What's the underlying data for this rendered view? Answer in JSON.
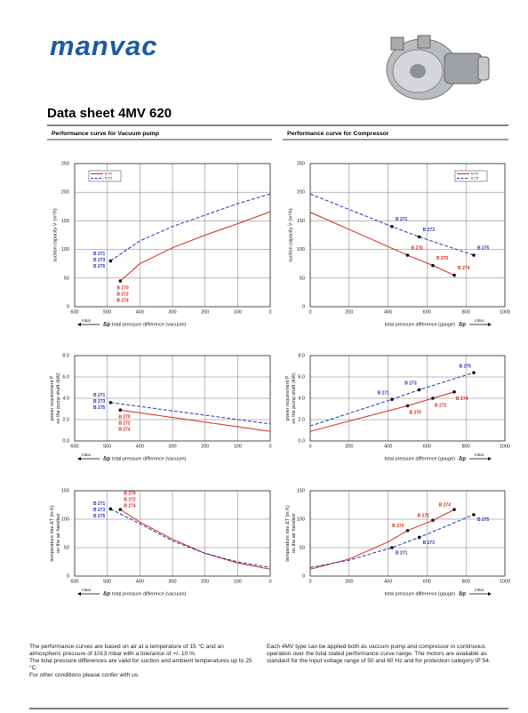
{
  "header": {
    "logo": "manvac",
    "title": "Data sheet 4MV 620"
  },
  "sections": [
    "Performance curve for Vacuum pump",
    "Performance curve for Compressor"
  ],
  "chart_data": [
    {
      "type": "line",
      "ylabel": [
        "suction capacity V̇ (m³/h)"
      ],
      "xunit": "mbar",
      "xsymbol": "Δp",
      "xlabel": "total pressure difference (vacuum)",
      "xlim": [
        600,
        0
      ],
      "xticks": [
        600,
        500,
        400,
        300,
        200,
        100,
        0
      ],
      "ylim": [
        0,
        250
      ],
      "yticks": [
        0,
        50,
        100,
        150,
        200,
        250
      ],
      "grid": true,
      "legend": "upper left",
      "series": [
        {
          "name": "B 270",
          "color": "#d42a1e",
          "dash": false,
          "x": [
            460,
            400,
            300,
            200,
            100,
            0
          ],
          "values": [
            45,
            75,
            103,
            125,
            145,
            166
          ],
          "markers": [
            {
              "x": 460,
              "y": 45,
              "labels": [
                "B 270",
                "B 272",
                "B 274"
              ]
            }
          ]
        },
        {
          "name": "B 275",
          "color": "#2238b8",
          "dash": true,
          "x": [
            490,
            400,
            300,
            200,
            100,
            0
          ],
          "values": [
            80,
            115,
            140,
            160,
            180,
            197
          ],
          "markers": [
            {
              "x": 490,
              "y": 80,
              "labels": [
                "B 271",
                "B 273",
                "B 275"
              ]
            }
          ]
        }
      ]
    },
    {
      "type": "line",
      "ylabel": [
        "suction capacity V̇ (m³/h)"
      ],
      "xunit": "mbar",
      "xsymbol": "Δp",
      "xlabel": "total pressure difference (gauge)",
      "xlim": [
        0,
        1000
      ],
      "xticks": [
        0,
        200,
        400,
        600,
        800,
        1000
      ],
      "ylim": [
        0,
        250
      ],
      "yticks": [
        0,
        50,
        100,
        150,
        200,
        250
      ],
      "grid": true,
      "legend": "upper right",
      "series": [
        {
          "name": "B 270",
          "color": "#d42a1e",
          "dash": false,
          "x": [
            0,
            500,
            630,
            740
          ],
          "values": [
            165,
            90,
            72,
            55
          ],
          "markers": [
            {
              "x": 500,
              "y": 90,
              "labels": [
                "B 270"
              ]
            },
            {
              "x": 630,
              "y": 72,
              "labels": [
                "B 272"
              ]
            },
            {
              "x": 740,
              "y": 55,
              "labels": [
                "B 274"
              ]
            }
          ]
        },
        {
          "name": "B 275",
          "color": "#2238b8",
          "dash": true,
          "x": [
            0,
            420,
            560,
            840
          ],
          "values": [
            197,
            140,
            122,
            90
          ],
          "markers": [
            {
              "x": 420,
              "y": 140,
              "labels": [
                "B 271"
              ]
            },
            {
              "x": 560,
              "y": 122,
              "labels": [
                "B 273"
              ]
            },
            {
              "x": 840,
              "y": 90,
              "labels": [
                "B 275"
              ]
            }
          ]
        }
      ]
    },
    {
      "type": "line",
      "ylabel": [
        "power requirement P",
        "on the pump shaft (kW)"
      ],
      "xunit": "mbar",
      "xsymbol": "Δp",
      "xlabel": "total pressure difference (vacuum)",
      "xlim": [
        600,
        0
      ],
      "xticks": [
        600,
        500,
        400,
        300,
        200,
        100,
        0
      ],
      "ylim": [
        0,
        8
      ],
      "yticks": [
        {
          "value": 0,
          "label": "0.0"
        },
        {
          "value": 2,
          "label": "2.0"
        },
        {
          "value": 4,
          "label": "4.0"
        },
        {
          "value": 6,
          "label": "6.0"
        },
        {
          "value": 8,
          "label": "8.0"
        }
      ],
      "grid": true,
      "series": [
        {
          "name": "B 270",
          "color": "#d42a1e",
          "dash": false,
          "x": [
            460,
            0
          ],
          "values": [
            2.9,
            0.9
          ],
          "markers": [
            {
              "x": 460,
              "y": 2.9,
              "labels": [
                "B 270",
                "B 272",
                "B 274"
              ]
            }
          ]
        },
        {
          "name": "B 275",
          "color": "#2238b8",
          "dash": true,
          "x": [
            490,
            0
          ],
          "values": [
            3.6,
            1.6
          ],
          "markers": [
            {
              "x": 490,
              "y": 3.6,
              "labels": [
                "B 271",
                "B 273",
                "B 275"
              ]
            }
          ]
        }
      ]
    },
    {
      "type": "line",
      "ylabel": [
        "power requirement P",
        "on the pump shaft (kW)"
      ],
      "xunit": "mbar",
      "xsymbol": "Δp",
      "xlabel": "total pressure difference (gauge)",
      "xlim": [
        0,
        1000
      ],
      "xticks": [
        0,
        200,
        400,
        600,
        800,
        1000
      ],
      "ylim": [
        0,
        8
      ],
      "yticks": [
        {
          "value": 0,
          "label": "0.0"
        },
        {
          "value": 2,
          "label": "2.0"
        },
        {
          "value": 4,
          "label": "4.0"
        },
        {
          "value": 6,
          "label": "6.0"
        },
        {
          "value": 8,
          "label": "8.0"
        }
      ],
      "grid": true,
      "series": [
        {
          "name": "B 270",
          "color": "#d42a1e",
          "dash": false,
          "x": [
            0,
            500,
            630,
            740
          ],
          "values": [
            0.9,
            3.3,
            4.0,
            4.6
          ],
          "markers": [
            {
              "x": 500,
              "y": 3.3,
              "labels": [
                "B 270"
              ]
            },
            {
              "x": 630,
              "y": 4.0,
              "labels": [
                "B 272"
              ]
            },
            {
              "x": 740,
              "y": 4.6,
              "labels": [
                "B 274"
              ]
            }
          ]
        },
        {
          "name": "B 275",
          "color": "#2238b8",
          "dash": true,
          "x": [
            0,
            420,
            560,
            840
          ],
          "values": [
            1.4,
            3.9,
            4.8,
            6.4
          ],
          "markers": [
            {
              "x": 420,
              "y": 3.9,
              "labels": [
                "B 271"
              ]
            },
            {
              "x": 560,
              "y": 4.8,
              "labels": [
                "B 273"
              ]
            },
            {
              "x": 840,
              "y": 6.4,
              "labels": [
                "B 275"
              ]
            }
          ]
        }
      ]
    },
    {
      "type": "line",
      "ylabel": [
        "temperature rise ΔT (in K)",
        "on the air handled"
      ],
      "xunit": "mbar",
      "xsymbol": "Δp",
      "xlabel": "total pressure difference (vacuum)",
      "xlim": [
        600,
        0
      ],
      "xticks": [
        600,
        500,
        400,
        300,
        200,
        100,
        0
      ],
      "ylim": [
        0,
        150
      ],
      "yticks": [
        0,
        50,
        100,
        150
      ],
      "grid": true,
      "series": [
        {
          "name": "B 270",
          "color": "#d42a1e",
          "dash": false,
          "x": [
            460,
            400,
            300,
            200,
            100,
            0
          ],
          "values": [
            117,
            95,
            65,
            40,
            23,
            12
          ],
          "markers": [
            {
              "x": 460,
              "y": 117,
              "labels": [
                "B 270",
                "B 272",
                "B 274"
              ]
            }
          ]
        },
        {
          "name": "B 275",
          "color": "#2238b8",
          "dash": true,
          "x": [
            490,
            400,
            300,
            200,
            100,
            0
          ],
          "values": [
            118,
            92,
            62,
            40,
            25,
            15
          ],
          "markers": [
            {
              "x": 490,
              "y": 118,
              "labels": [
                "B 271",
                "B 273",
                "B 275"
              ]
            }
          ]
        }
      ]
    },
    {
      "type": "line",
      "ylabel": [
        "temperature rise ΔT (in K)",
        "on the air handled"
      ],
      "xunit": "mbar",
      "xsymbol": "Δp",
      "xlabel": "total pressure difference (gauge)",
      "xlim": [
        0,
        1000
      ],
      "xticks": [
        0,
        200,
        400,
        600,
        800,
        1000
      ],
      "ylim": [
        0,
        150
      ],
      "yticks": [
        0,
        50,
        100,
        150
      ],
      "grid": true,
      "series": [
        {
          "name": "B 270",
          "color": "#d42a1e",
          "dash": false,
          "x": [
            0,
            200,
            400,
            500,
            630,
            740
          ],
          "values": [
            12,
            30,
            60,
            80,
            98,
            117
          ],
          "markers": [
            {
              "x": 500,
              "y": 80,
              "labels": [
                "B 270"
              ]
            },
            {
              "x": 630,
              "y": 98,
              "labels": [
                "B 272"
              ]
            },
            {
              "x": 740,
              "y": 117,
              "labels": [
                "B 274"
              ]
            }
          ]
        },
        {
          "name": "B 275",
          "color": "#2238b8",
          "dash": true,
          "x": [
            0,
            200,
            420,
            560,
            840
          ],
          "values": [
            15,
            28,
            50,
            68,
            108
          ],
          "markers": [
            {
              "x": 420,
              "y": 50,
              "labels": [
                "B 271"
              ]
            },
            {
              "x": 560,
              "y": 68,
              "labels": [
                "B 273"
              ]
            },
            {
              "x": 840,
              "y": 108,
              "labels": [
                "B 275"
              ]
            }
          ]
        }
      ]
    }
  ],
  "notes": {
    "left": [
      "The performance curves are based on air at a temperature of 15 °C and an atmospheric pressure of 1013 mbar with a tolerance of +/- 10 %.",
      "The total pressure differences are valid for suction and ambient temperatures up to 25 °C.",
      "For other conditions please confer with us."
    ],
    "right": [
      "Each 4MV type can be applied both as vacuum pump and compressor in continuous operation over the total stated performance curve range. The motors are available as standard for the input voltage range of 50 and 60 Hz and for protection category IP 54."
    ]
  }
}
